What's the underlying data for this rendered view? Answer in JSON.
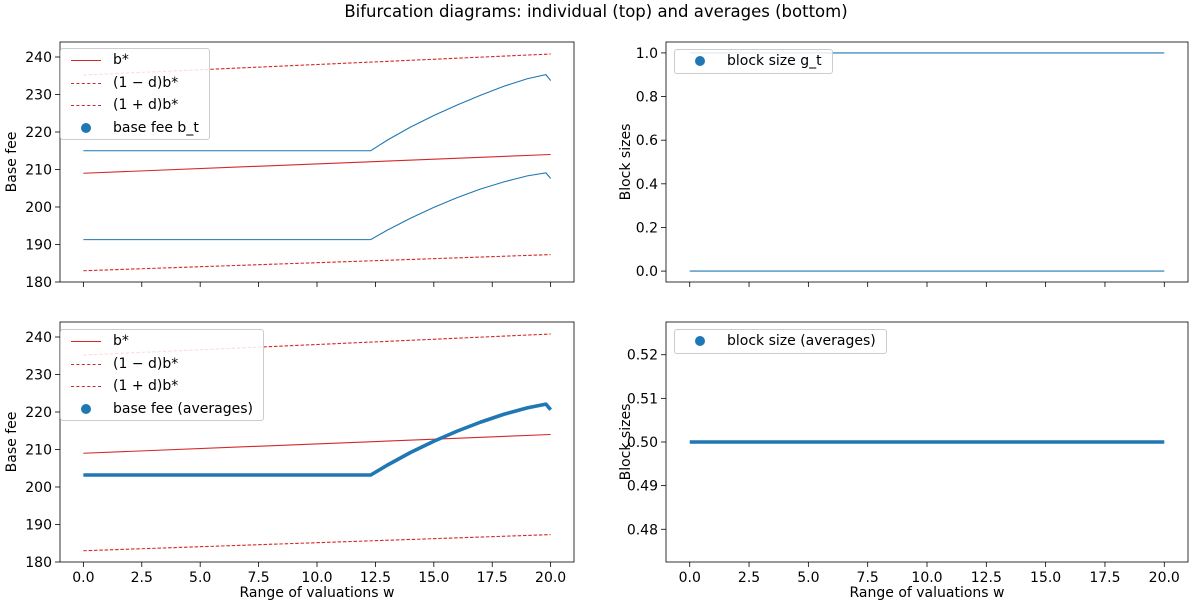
{
  "figure": {
    "title": "Bifurcation diagrams: individual (top) and averages (bottom)"
  },
  "colors": {
    "blue": "#1f77b4",
    "red": "#d62728",
    "axis": "#000000"
  },
  "chart_data": [
    {
      "id": "top_left",
      "type": "line",
      "title": "",
      "xlabel": "",
      "ylabel": "Base fee",
      "xlim": [
        -1,
        21
      ],
      "ylim": [
        180,
        244
      ],
      "x_ticks": [
        0,
        2.5,
        5,
        7.5,
        10,
        12.5,
        15,
        17.5,
        20
      ],
      "x_tick_labels": [],
      "y_ticks": [
        180,
        190,
        200,
        210,
        220,
        230,
        240
      ],
      "y_tick_labels": [
        "180",
        "190",
        "200",
        "210",
        "220",
        "230",
        "240"
      ],
      "legend": {
        "position": "upper-left",
        "entries": [
          {
            "label": "b*",
            "style": "solid-red"
          },
          {
            "label": "(1 − d)b*",
            "style": "dashed-red"
          },
          {
            "label": "(1 + d)b*",
            "style": "dashed-red"
          },
          {
            "label": "base fee b_t",
            "style": "blue-dot"
          }
        ]
      },
      "series": [
        {
          "name": "b*",
          "style": "solid-red",
          "x": [
            0,
            20
          ],
          "y": [
            209,
            214
          ]
        },
        {
          "name": "(1 − d)b*",
          "style": "dashed-red",
          "x": [
            0,
            20
          ],
          "y": [
            183,
            187.3
          ]
        },
        {
          "name": "(1 + d)b*",
          "style": "dashed-red",
          "x": [
            0,
            20
          ],
          "y": [
            235.2,
            240.8
          ]
        },
        {
          "name": "base fee b_t (upper)",
          "style": "thin-blue",
          "x": [
            0,
            12.3,
            13,
            14,
            15,
            16,
            17,
            18,
            19,
            19.8,
            20
          ],
          "y": [
            215,
            215,
            217.8,
            221.3,
            224.4,
            227.2,
            229.8,
            232.2,
            234.2,
            235.3,
            233.7
          ]
        },
        {
          "name": "base fee b_t (lower)",
          "style": "thin-blue",
          "x": [
            0,
            12.3,
            13,
            14,
            15,
            16,
            17,
            18,
            19,
            19.8,
            20
          ],
          "y": [
            191.3,
            191.3,
            193.8,
            197,
            199.9,
            202.5,
            204.8,
            206.7,
            208.3,
            209.1,
            207.6
          ]
        }
      ]
    },
    {
      "id": "top_right",
      "type": "line",
      "title": "",
      "xlabel": "",
      "ylabel": "Block sizes",
      "xlim": [
        -1,
        21
      ],
      "ylim": [
        -0.05,
        1.05
      ],
      "x_ticks": [
        0,
        2.5,
        5,
        7.5,
        10,
        12.5,
        15,
        17.5,
        20
      ],
      "x_tick_labels": [],
      "y_ticks": [
        0.0,
        0.2,
        0.4,
        0.6,
        0.8,
        1.0
      ],
      "y_tick_labels": [
        "0.0",
        "0.2",
        "0.4",
        "0.6",
        "0.8",
        "1.0"
      ],
      "legend": {
        "position": "upper-left",
        "entries": [
          {
            "label": "block size g_t",
            "style": "blue-dot"
          }
        ]
      },
      "series": [
        {
          "name": "block size g_t (upper)",
          "style": "thin-blue",
          "x": [
            0,
            20
          ],
          "y": [
            1.0,
            1.0
          ]
        },
        {
          "name": "block size g_t (lower)",
          "style": "thin-blue",
          "x": [
            0,
            20
          ],
          "y": [
            0.0,
            0.0
          ]
        }
      ]
    },
    {
      "id": "bottom_left",
      "type": "line",
      "title": "",
      "xlabel": "Range of valuations w",
      "ylabel": "Base fee",
      "xlim": [
        -1,
        21
      ],
      "ylim": [
        180,
        244
      ],
      "x_ticks": [
        0,
        2.5,
        5,
        7.5,
        10,
        12.5,
        15,
        17.5,
        20
      ],
      "x_tick_labels": [
        "0.0",
        "2.5",
        "5.0",
        "7.5",
        "10.0",
        "12.5",
        "15.0",
        "17.5",
        "20.0"
      ],
      "y_ticks": [
        180,
        190,
        200,
        210,
        220,
        230,
        240
      ],
      "y_tick_labels": [
        "180",
        "190",
        "200",
        "210",
        "220",
        "230",
        "240"
      ],
      "legend": {
        "position": "upper-left",
        "entries": [
          {
            "label": "b*",
            "style": "solid-red"
          },
          {
            "label": "(1 − d)b*",
            "style": "dashed-red"
          },
          {
            "label": "(1 + d)b*",
            "style": "dashed-red"
          },
          {
            "label": "base fee (averages)",
            "style": "blue-dot"
          }
        ]
      },
      "series": [
        {
          "name": "b*",
          "style": "solid-red",
          "x": [
            0,
            20
          ],
          "y": [
            209,
            214
          ]
        },
        {
          "name": "(1 − d)b*",
          "style": "dashed-red",
          "x": [
            0,
            20
          ],
          "y": [
            183,
            187.3
          ]
        },
        {
          "name": "(1 + d)b*",
          "style": "dashed-red",
          "x": [
            0,
            20
          ],
          "y": [
            235.2,
            240.8
          ]
        },
        {
          "name": "base fee (averages)",
          "style": "thick-blue",
          "x": [
            0,
            12.3,
            13,
            14,
            15,
            16,
            17,
            18,
            19,
            19.8,
            20
          ],
          "y": [
            203.2,
            203.2,
            205.8,
            209.2,
            212.2,
            214.9,
            217.3,
            219.4,
            221.1,
            222.1,
            220.6
          ]
        }
      ]
    },
    {
      "id": "bottom_right",
      "type": "line",
      "title": "",
      "xlabel": "Range of valuations w",
      "ylabel": "Block sizes",
      "xlim": [
        -1,
        21
      ],
      "ylim": [
        0.4725,
        0.5275
      ],
      "x_ticks": [
        0,
        2.5,
        5,
        7.5,
        10,
        12.5,
        15,
        17.5,
        20
      ],
      "x_tick_labels": [
        "0.0",
        "2.5",
        "5.0",
        "7.5",
        "10.0",
        "12.5",
        "15.0",
        "17.5",
        "20.0"
      ],
      "y_ticks": [
        0.48,
        0.49,
        0.5,
        0.51,
        0.52
      ],
      "y_tick_labels": [
        "0.48",
        "0.49",
        "0.50",
        "0.51",
        "0.52"
      ],
      "legend": {
        "position": "upper-left",
        "entries": [
          {
            "label": "block size (averages)",
            "style": "blue-dot"
          }
        ]
      },
      "series": [
        {
          "name": "block size (averages)",
          "style": "thick-blue",
          "x": [
            0,
            20
          ],
          "y": [
            0.5,
            0.5
          ]
        }
      ]
    }
  ]
}
